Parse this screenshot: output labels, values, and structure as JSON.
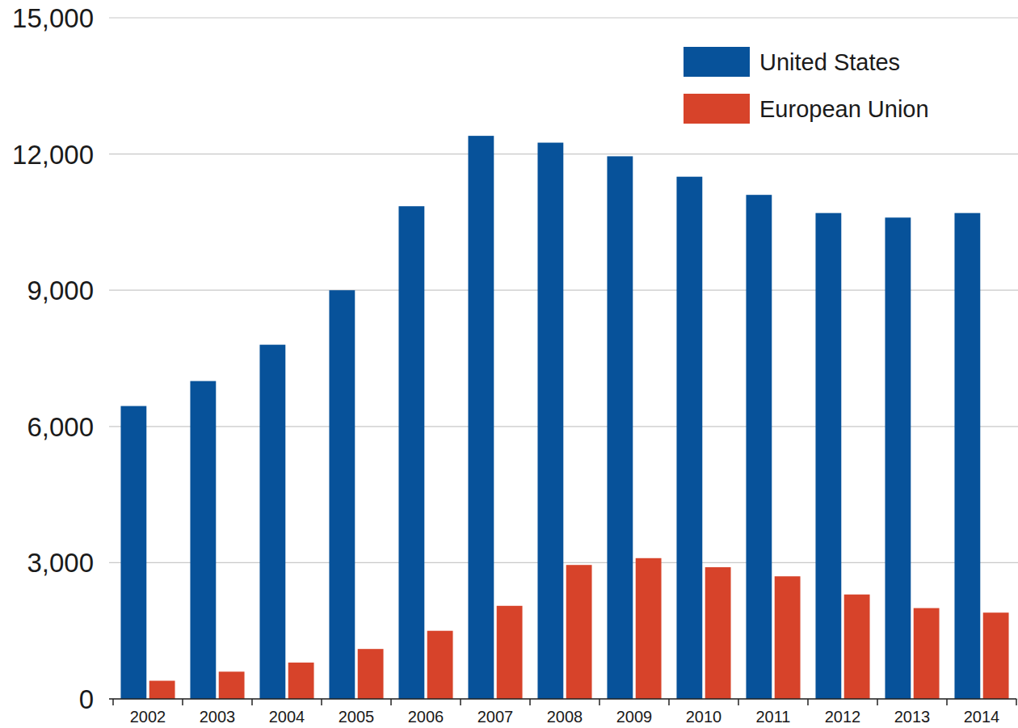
{
  "chart_data": {
    "type": "bar",
    "categories": [
      "2002",
      "2003",
      "2004",
      "2005",
      "2006",
      "2007",
      "2008",
      "2009",
      "2010",
      "2011",
      "2012",
      "2013",
      "2014"
    ],
    "series": [
      {
        "name": "United States",
        "color": "#07529a",
        "values": [
          6450,
          7000,
          7800,
          9000,
          10850,
          12400,
          12250,
          11950,
          11500,
          11100,
          10700,
          10600,
          10700
        ]
      },
      {
        "name": "European Union",
        "color": "#d7432a",
        "values": [
          400,
          600,
          800,
          1100,
          1500,
          2050,
          2950,
          3100,
          2900,
          2700,
          2300,
          2000,
          1900
        ]
      }
    ],
    "ylim": [
      0,
      15000
    ],
    "yticks": [
      0,
      {
        "value": 3000,
        "label": "3,000"
      },
      {
        "value": 6000,
        "label": "6,000"
      },
      {
        "value": 9000,
        "label": "9,000"
      },
      {
        "value": 12000,
        "label": "12,000"
      },
      {
        "value": 15000,
        "label": "15,000"
      }
    ],
    "grid": true,
    "legend": "top-right"
  }
}
